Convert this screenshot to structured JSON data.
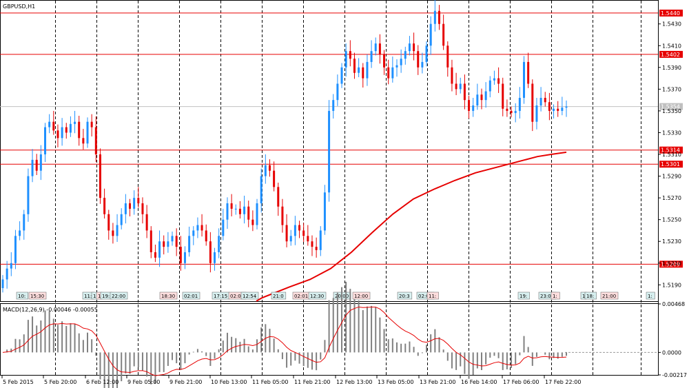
{
  "chart_data": [
    {
      "type": "candlestick",
      "title": "GBPUSD,H1",
      "ylim": [
        1.5175,
        1.5452
      ],
      "y_ticks": [
        "1.5190",
        "1.5210",
        "1.5230",
        "1.5250",
        "1.5270",
        "1.5290",
        "1.5310",
        "1.5330",
        "1.5350",
        "1.5370",
        "1.5390",
        "1.5410",
        "1.5430"
      ],
      "y_tick_values": [
        1.519,
        1.521,
        1.523,
        1.525,
        1.527,
        1.529,
        1.531,
        1.533,
        1.535,
        1.537,
        1.539,
        1.541,
        1.543
      ],
      "current_price": {
        "label": "1.5354",
        "value": 1.5354
      },
      "levels": [
        {
          "label": "1.5440",
          "value": 1.544
        },
        {
          "label": "1.5402",
          "value": 1.5402
        },
        {
          "label": "1.5314",
          "value": 1.5314
        },
        {
          "label": "1.5301",
          "value": 1.5301
        },
        {
          "label": "1.5209",
          "value": 1.5209
        }
      ],
      "close_path": [
        1.5195,
        1.5205,
        1.521,
        1.5235,
        1.524,
        1.5255,
        1.529,
        1.5305,
        1.5295,
        1.531,
        1.5335,
        1.534,
        1.5332,
        1.5325,
        1.5335,
        1.533,
        1.5338,
        1.534,
        1.5325,
        1.532,
        1.534,
        1.5335,
        1.531,
        1.527,
        1.5255,
        1.524,
        1.5235,
        1.5245,
        1.5255,
        1.5265,
        1.526,
        1.527,
        1.5265,
        1.5255,
        1.524,
        1.522,
        1.5215,
        1.523,
        1.5225,
        1.523,
        1.5235,
        1.5225,
        1.521,
        1.522,
        1.5235,
        1.524,
        1.5245,
        1.524,
        1.523,
        1.521,
        1.522,
        1.5235,
        1.525,
        1.5265,
        1.526,
        1.526,
        1.5255,
        1.5262,
        1.525,
        1.5245,
        1.5265,
        1.529,
        1.53,
        1.5295,
        1.528,
        1.5262,
        1.5245,
        1.523,
        1.5235,
        1.5245,
        1.524,
        1.5235,
        1.523,
        1.5225,
        1.5222,
        1.524,
        1.5275,
        1.535,
        1.536,
        1.5375,
        1.539,
        1.5405,
        1.5398,
        1.5385,
        1.539,
        1.538,
        1.5395,
        1.5405,
        1.5412,
        1.5402,
        1.539,
        1.538,
        1.539,
        1.5392,
        1.5398,
        1.5405,
        1.5412,
        1.5405,
        1.539,
        1.5395,
        1.541,
        1.543,
        1.5442,
        1.543,
        1.541,
        1.539,
        1.5375,
        1.537,
        1.5375,
        1.536,
        1.535,
        1.5355,
        1.5365,
        1.536,
        1.5368,
        1.5378,
        1.538,
        1.5375,
        1.5352,
        1.535,
        1.5348,
        1.535,
        1.5362,
        1.5395,
        1.5375,
        1.534,
        1.5355,
        1.5362,
        1.5358,
        1.535,
        1.5352,
        1.535,
        1.5353,
        1.5354
      ],
      "ma_path": [
        [
          372,
          1.5175
        ],
        [
          380,
          1.5178
        ],
        [
          420,
          1.5188
        ],
        [
          450,
          1.5195
        ],
        [
          480,
          1.5205
        ],
        [
          510,
          1.522
        ],
        [
          540,
          1.5238
        ],
        [
          570,
          1.5255
        ],
        [
          600,
          1.5269
        ],
        [
          630,
          1.5278
        ],
        [
          660,
          1.5286
        ],
        [
          690,
          1.5293
        ],
        [
          720,
          1.5298
        ],
        [
          750,
          1.5303
        ],
        [
          780,
          1.5308
        ],
        [
          800,
          1.531
        ],
        [
          822,
          1.5312
        ]
      ],
      "x_start_bar": 4,
      "x_end_bar": 822,
      "event_markers": [
        "10:",
        "15:30",
        "11:",
        "1",
        "1",
        "19:",
        "22:00",
        "18:30",
        "02:01",
        "17:15",
        "02:01",
        "12:54",
        "21:0",
        "02:01",
        "12:30",
        "20:00",
        "12:00",
        "20:3",
        "02:01",
        "11:",
        "19:",
        "23:00",
        "1:",
        "1",
        "18:",
        "21:00",
        "1:"
      ],
      "x_ticks": [
        "5 Feb 2015",
        "5 Feb 20:00",
        "6 Feb 12:00",
        "9 Feb 05:00",
        "9 Feb 21:00",
        "10 Feb 13:00",
        "11 Feb 05:00",
        "11 Feb 21:00",
        "12 Feb 13:00",
        "13 Feb 05:00",
        "13 Feb 21:00",
        "16 Feb 14:00",
        "17 Feb 06:00",
        "17 Feb 22:00"
      ]
    },
    {
      "type": "histogram+line",
      "title": "MACD(12,26,9) -0.00046 -0.00055",
      "ylim": [
        -0.00217,
        0.00468
      ],
      "y_ticks": [
        "0.00468",
        "0.0000",
        "-0.00217"
      ],
      "y_tick_values": [
        0.00468,
        0.0,
        -0.00217
      ]
    }
  ],
  "colors": {
    "bull": "#1e90ff",
    "bear": "#e60000",
    "level": "#e60000",
    "ma": "#e60000",
    "grid": "#000000",
    "macd_hist": "#808080",
    "signal": "#e60000",
    "current": "#c0c0c0"
  }
}
